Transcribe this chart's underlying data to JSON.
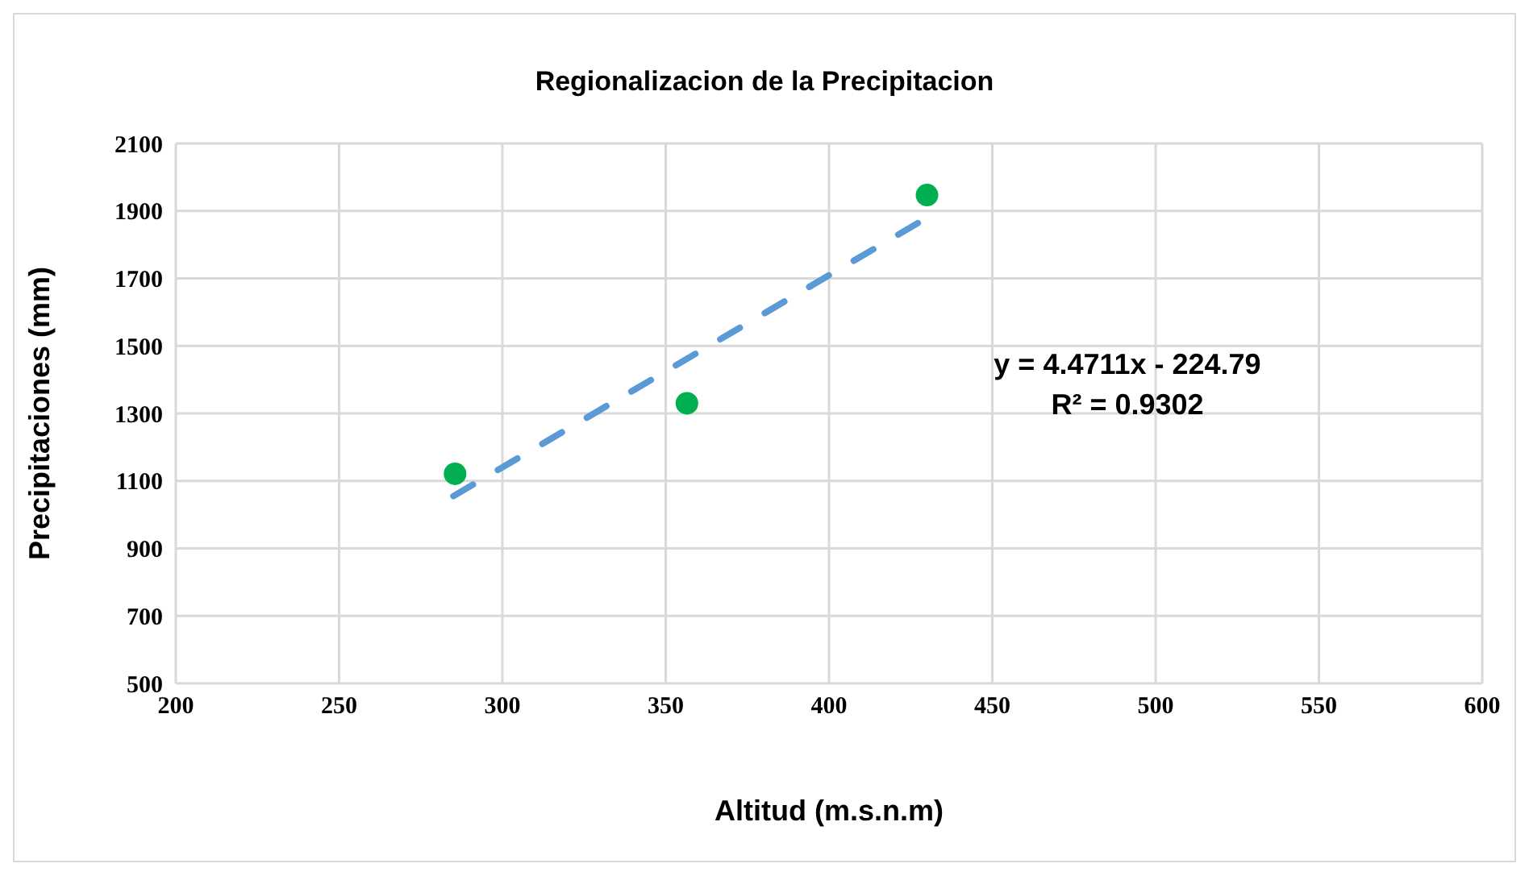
{
  "chart_data": {
    "type": "scatter",
    "title": "Regionalizacion de la Precipitacion",
    "xlabel": "Altitud (m.s.n.m)",
    "ylabel": "Precipitaciones (mm)",
    "xlim": [
      200,
      600
    ],
    "xticks": [
      200,
      250,
      300,
      350,
      400,
      450,
      500,
      550,
      600
    ],
    "ylim": [
      500,
      2100
    ],
    "yticks": [
      500,
      700,
      900,
      1100,
      1300,
      1500,
      1700,
      1900,
      2100
    ],
    "grid": true,
    "marker": "circle",
    "series": [
      {
        "color": "#00b050",
        "x": [
          285.5,
          356.5,
          430
        ],
        "values": [
          1121,
          1330,
          1947
        ]
      },
      {
        "type": "line",
        "color": "#5b9bd5",
        "line_style": "dashed",
        "marker": "none",
        "x": [
          285,
          430
        ],
        "values": [
          1055,
          1880
        ]
      }
    ],
    "annotations": [
      "y = 4.4711x - 224.79",
      "R² = 0.9302"
    ]
  }
}
